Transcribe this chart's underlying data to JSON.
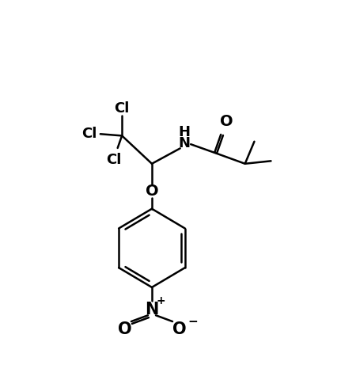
{
  "background_color": "#ffffff",
  "line_color": "#000000",
  "line_width": 1.8,
  "font_size": 12,
  "fig_width": 4.26,
  "fig_height": 4.8,
  "dpi": 100,
  "xlim": [
    0,
    10
  ],
  "ylim": [
    0,
    11
  ]
}
